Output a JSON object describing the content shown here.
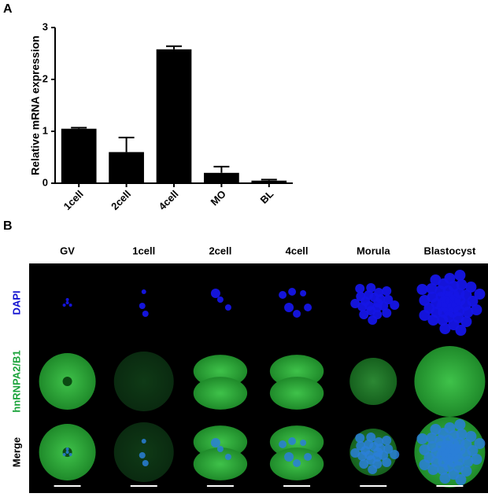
{
  "chart_data": {
    "type": "bar",
    "panel_label": "A",
    "y_label": "Relative mRNA expression",
    "categories": [
      "1cell",
      "2cell",
      "4cell",
      "MO",
      "BL"
    ],
    "values": [
      1.05,
      0.6,
      2.58,
      0.2,
      0.05
    ],
    "errors": [
      0.02,
      0.28,
      0.06,
      0.12,
      0.02
    ],
    "color": "#000000",
    "ylim": [
      0,
      3
    ],
    "yticks": [
      0,
      1,
      2,
      3
    ],
    "grid": false
  },
  "panel_b": {
    "label": "B",
    "columns": [
      "GV",
      "1cell",
      "2cell",
      "4cell",
      "Morula",
      "Blastocyst"
    ],
    "rows": [
      "DAPI",
      "hnRNPA2/B1",
      "Merge"
    ]
  }
}
